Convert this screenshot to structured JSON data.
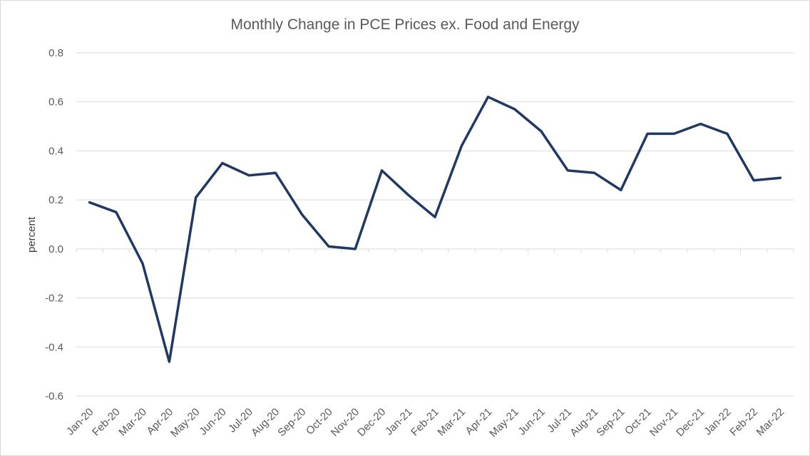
{
  "chart_data": {
    "type": "line",
    "title": "Monthly Change in PCE Prices ex. Food and Energy",
    "xlabel": "",
    "ylabel": "percent",
    "ylim": [
      -0.6,
      0.8
    ],
    "yticks": [
      0.8,
      0.6,
      0.4,
      0.2,
      0.0,
      -0.2,
      -0.4,
      -0.6
    ],
    "ytick_labels": [
      "0.8",
      "0.6",
      "0.4",
      "0.2",
      "0.0",
      "-0.2",
      "-0.4",
      "-0.6"
    ],
    "grid": true,
    "legend": "none",
    "line_color": "#203864",
    "categories": [
      "Jan-20",
      "Feb-20",
      "Mar-20",
      "Apr-20",
      "May-20",
      "Jun-20",
      "Jul-20",
      "Aug-20",
      "Sep-20",
      "Oct-20",
      "Nov-20",
      "Dec-20",
      "Jan-21",
      "Feb-21",
      "Mar-21",
      "Apr-21",
      "May-21",
      "Jun-21",
      "Jul-21",
      "Aug-21",
      "Sep-21",
      "Oct-21",
      "Nov-21",
      "Dec-21",
      "Jan-22",
      "Feb-22",
      "Mar-22"
    ],
    "series": [
      {
        "values": [
          0.19,
          0.15,
          -0.06,
          -0.46,
          0.21,
          0.35,
          0.3,
          0.31,
          0.14,
          0.01,
          0.0,
          0.32,
          0.22,
          0.13,
          0.42,
          0.62,
          0.57,
          0.48,
          0.32,
          0.31,
          0.24,
          0.47,
          0.47,
          0.51,
          0.47,
          0.28,
          0.29
        ]
      }
    ]
  }
}
